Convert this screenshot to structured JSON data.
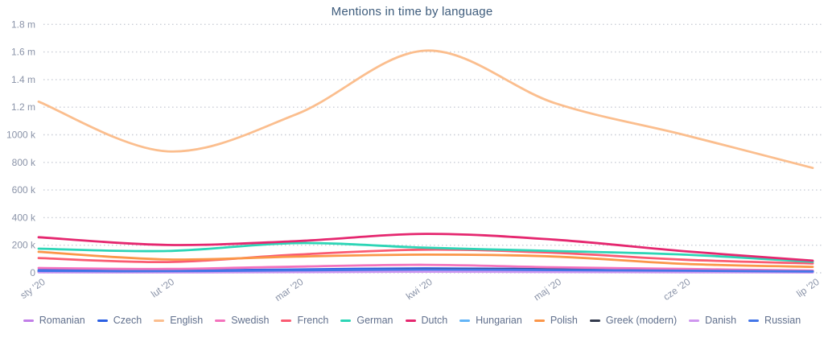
{
  "chart_data": {
    "type": "line",
    "title": "Mentions in time by language",
    "xlabel": "",
    "ylabel": "",
    "x_tick_labels": [
      "sty '20",
      "lut '20",
      "mar '20",
      "kwi '20",
      "maj '20",
      "cze '20",
      "lip '20"
    ],
    "y_tick_labels": [
      "0",
      "200 k",
      "400 k",
      "600 k",
      "800 k",
      "1000 k",
      "1.2 m",
      "1.4 m",
      "1.6 m",
      "1.8 m"
    ],
    "ylim_mentions": [
      0,
      1800000
    ],
    "grid": "horizontal-dotted",
    "legend_position": "bottom",
    "values_unit": "thousands of mentions",
    "series": [
      {
        "name": "Romanian",
        "color": "#c17ee8",
        "values": [
          6,
          5,
          8,
          12,
          10,
          7,
          4
        ]
      },
      {
        "name": "Czech",
        "color": "#2b5fe3",
        "values": [
          20,
          16,
          24,
          32,
          26,
          18,
          12
        ]
      },
      {
        "name": "English",
        "color": "#fbbe8e",
        "values": [
          1240,
          880,
          1150,
          1610,
          1230,
          1000,
          760
        ]
      },
      {
        "name": "Swedish",
        "color": "#f472bd",
        "values": [
          35,
          28,
          45,
          58,
          40,
          28,
          16
        ]
      },
      {
        "name": "French",
        "color": "#fa5b72",
        "values": [
          107,
          78,
          132,
          168,
          145,
          95,
          68
        ]
      },
      {
        "name": "German",
        "color": "#2dd5b6",
        "values": [
          175,
          158,
          215,
          182,
          158,
          132,
          80
        ]
      },
      {
        "name": "Dutch",
        "color": "#e5276f",
        "values": [
          258,
          202,
          230,
          282,
          240,
          157,
          88
        ]
      },
      {
        "name": "Hungarian",
        "color": "#63b5f7",
        "values": [
          8,
          7,
          11,
          15,
          12,
          9,
          6
        ]
      },
      {
        "name": "Polish",
        "color": "#fb9649",
        "values": [
          152,
          97,
          118,
          132,
          118,
          65,
          43
        ]
      },
      {
        "name": "Greek (modern)",
        "color": "#333b4d",
        "values": [
          10,
          8,
          15,
          26,
          22,
          12,
          6
        ]
      },
      {
        "name": "Danish",
        "color": "#cf97ef",
        "values": [
          4,
          3,
          5,
          8,
          6,
          4,
          3
        ]
      },
      {
        "name": "Russian",
        "color": "#4376e8",
        "values": [
          14,
          12,
          18,
          24,
          20,
          15,
          10
        ]
      }
    ]
  },
  "colors": {
    "title": "#3e5c7c",
    "axis_label": "#8a93a8",
    "legend_label": "#61708d",
    "gridline": "#c9cdd6",
    "background": "#ffffff"
  }
}
